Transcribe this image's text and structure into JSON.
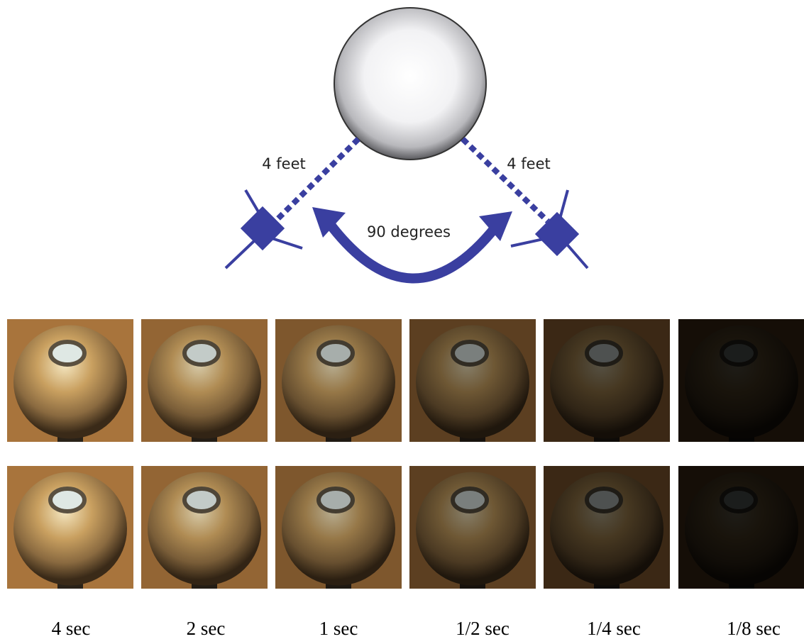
{
  "diagram": {
    "labels": {
      "left_distance": "4 feet",
      "right_distance": "4 feet",
      "angle": "90 degrees"
    }
  },
  "exposures": [
    "4 sec",
    "2 sec",
    "1 sec",
    "1/2 sec",
    "1/4 sec",
    "1/8 sec"
  ]
}
